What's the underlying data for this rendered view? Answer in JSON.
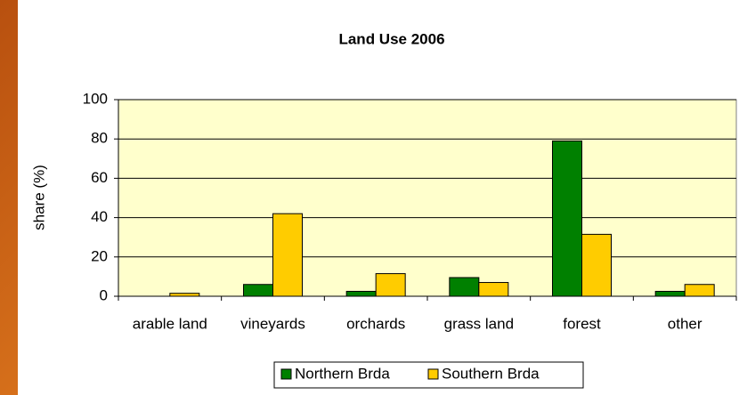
{
  "chart_data": {
    "type": "bar",
    "title": "Land Use 2006",
    "y_label": "share (%)",
    "categories": [
      "arable land",
      "vineyards",
      "orchards",
      "grass land",
      "forest",
      "other"
    ],
    "series": [
      {
        "name": "Northern Brda",
        "color": "#008000",
        "values": [
          0,
          6,
          2.5,
          9.5,
          79,
          2.5
        ]
      },
      {
        "name": "Southern Brda",
        "color": "#ffcc00",
        "values": [
          1.5,
          42,
          11.5,
          7,
          31.5,
          6
        ]
      }
    ],
    "ylim": [
      0,
      100
    ],
    "yticks": [
      0,
      20,
      40,
      60,
      80,
      100
    ],
    "grid": true,
    "legend": "bottom"
  }
}
